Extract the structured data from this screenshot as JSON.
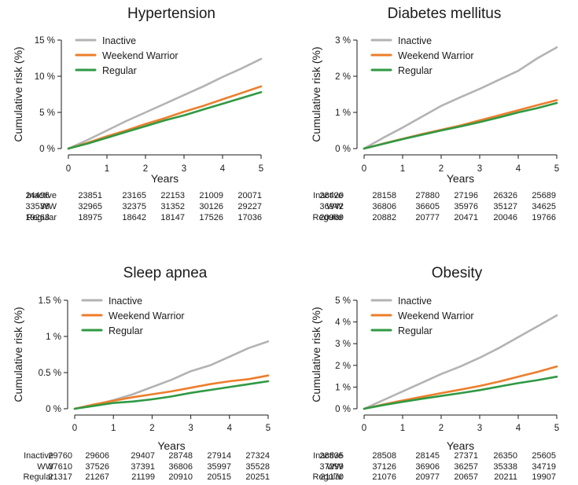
{
  "colors": {
    "Inactive": "#b3b3b3",
    "Weekend Warrior": "#ee7d2a",
    "Regular": "#2e9a42",
    "axis": "#1a1a1a"
  },
  "chart_data": [
    {
      "type": "line",
      "title": "Hypertension",
      "xlabel": "Years",
      "ylabel": "Cumulative risk (%)",
      "xlim": [
        0,
        5
      ],
      "ylim": [
        0,
        15
      ],
      "xticks": [
        "0",
        "1",
        "2",
        "3",
        "4",
        "5"
      ],
      "yticks": [
        0,
        5,
        10,
        15
      ],
      "ytick_labels": [
        "0 %",
        "5 %",
        "10 %",
        "15 %"
      ],
      "legend": [
        "Inactive",
        "Weekend Warrior",
        "Regular"
      ],
      "series": [
        {
          "name": "Inactive",
          "x": [
            0,
            0.5,
            1,
            1.5,
            2,
            2.5,
            3,
            3.5,
            4,
            4.5,
            5
          ],
          "y": [
            0,
            1.2,
            2.5,
            3.8,
            5.0,
            6.2,
            7.4,
            8.6,
            9.9,
            11.1,
            12.4
          ]
        },
        {
          "name": "Weekend Warrior",
          "x": [
            0,
            0.5,
            1,
            1.5,
            2,
            2.5,
            3,
            3.5,
            4,
            4.5,
            5
          ],
          "y": [
            0,
            0.8,
            1.7,
            2.5,
            3.4,
            4.2,
            5.1,
            5.9,
            6.8,
            7.7,
            8.6
          ]
        },
        {
          "name": "Regular",
          "x": [
            0,
            0.5,
            1,
            1.5,
            2,
            2.5,
            3,
            3.5,
            4,
            4.5,
            5
          ],
          "y": [
            0,
            0.7,
            1.5,
            2.3,
            3.1,
            3.9,
            4.6,
            5.4,
            6.2,
            7.0,
            7.8
          ]
        }
      ],
      "risk_table": {
        "rows": [
          {
            "label": "Inactive",
            "values": [
              "24496",
              "23851",
              "23165",
              "22153",
              "21009",
              "20071"
            ]
          },
          {
            "label": "WW",
            "values": [
              "33538",
              "32965",
              "32375",
              "31352",
              "30126",
              "29227"
            ]
          },
          {
            "label": "Regular",
            "values": [
              "19263",
              "18975",
              "18642",
              "18147",
              "17526",
              "17036"
            ]
          }
        ]
      }
    },
    {
      "type": "line",
      "title": "Diabetes mellitus",
      "xlabel": "Years",
      "ylabel": "Cumulative risk (%)",
      "xlim": [
        0,
        5
      ],
      "ylim": [
        0,
        3
      ],
      "xticks": [
        "0",
        "1",
        "2",
        "3",
        "4",
        "5"
      ],
      "yticks": [
        0,
        1,
        2,
        3
      ],
      "ytick_labels": [
        "0 %",
        "1 %",
        "2 %",
        "3 %"
      ],
      "legend": [
        "Inactive",
        "Weekend Warrior",
        "Regular"
      ],
      "series": [
        {
          "name": "Inactive",
          "x": [
            0,
            0.5,
            1,
            1.5,
            2,
            2.5,
            3,
            3.5,
            4,
            4.5,
            5
          ],
          "y": [
            0,
            0.3,
            0.58,
            0.88,
            1.18,
            1.42,
            1.65,
            1.9,
            2.15,
            2.5,
            2.8
          ]
        },
        {
          "name": "Weekend Warrior",
          "x": [
            0,
            0.5,
            1,
            1.5,
            2,
            2.5,
            3,
            3.5,
            4,
            4.5,
            5
          ],
          "y": [
            0,
            0.14,
            0.27,
            0.4,
            0.52,
            0.64,
            0.78,
            0.92,
            1.06,
            1.2,
            1.34
          ]
        },
        {
          "name": "Regular",
          "x": [
            0,
            0.5,
            1,
            1.5,
            2,
            2.5,
            3,
            3.5,
            4,
            4.5,
            5
          ],
          "y": [
            0,
            0.13,
            0.26,
            0.38,
            0.5,
            0.61,
            0.73,
            0.86,
            1.0,
            1.12,
            1.26
          ]
        }
      ],
      "risk_table": {
        "rows": [
          {
            "label": "Inactive",
            "values": [
              "28420",
              "28158",
              "27880",
              "27196",
              "26326",
              "25689"
            ]
          },
          {
            "label": "WW",
            "values": [
              "36942",
              "36806",
              "36605",
              "35976",
              "35127",
              "34625"
            ]
          },
          {
            "label": "Regular",
            "values": [
              "20969",
              "20882",
              "20777",
              "20471",
              "20046",
              "19766"
            ]
          }
        ]
      }
    },
    {
      "type": "line",
      "title": "Sleep apnea",
      "xlabel": "Years",
      "ylabel": "Cumulative risk (%)",
      "xlim": [
        0,
        5
      ],
      "ylim": [
        0,
        1.5
      ],
      "xticks": [
        "0",
        "1",
        "2",
        "3",
        "4",
        "5"
      ],
      "yticks": [
        0,
        0.5,
        1,
        1.5
      ],
      "ytick_labels": [
        "0 %",
        "0.5 %",
        "1 %",
        "1.5 %"
      ],
      "legend": [
        "Inactive",
        "Weekend Warrior",
        "Regular"
      ],
      "series": [
        {
          "name": "Inactive",
          "x": [
            0,
            0.5,
            1,
            1.5,
            2,
            2.5,
            3,
            3.5,
            4,
            4.5,
            5
          ],
          "y": [
            0,
            0.05,
            0.12,
            0.2,
            0.3,
            0.4,
            0.52,
            0.6,
            0.72,
            0.84,
            0.93
          ]
        },
        {
          "name": "Weekend Warrior",
          "x": [
            0,
            0.5,
            1,
            1.5,
            2,
            2.5,
            3,
            3.5,
            4,
            4.5,
            5
          ],
          "y": [
            0,
            0.06,
            0.11,
            0.16,
            0.2,
            0.24,
            0.29,
            0.34,
            0.38,
            0.41,
            0.46
          ]
        },
        {
          "name": "Regular",
          "x": [
            0,
            0.5,
            1,
            1.5,
            2,
            2.5,
            3,
            3.5,
            4,
            4.5,
            5
          ],
          "y": [
            0,
            0.04,
            0.08,
            0.1,
            0.13,
            0.17,
            0.22,
            0.26,
            0.3,
            0.34,
            0.38
          ]
        }
      ],
      "risk_table": {
        "rows": [
          {
            "label": "Inactive",
            "values": [
              "29760",
              "29606",
              "29407",
              "28748",
              "27914",
              "27324"
            ]
          },
          {
            "label": "WW",
            "values": [
              "37610",
              "37526",
              "37391",
              "36806",
              "35997",
              "35528"
            ]
          },
          {
            "label": "Regular",
            "values": [
              "21317",
              "21267",
              "21199",
              "20910",
              "20515",
              "20251"
            ]
          }
        ]
      }
    },
    {
      "type": "line",
      "title": "Obesity",
      "xlabel": "Years",
      "ylabel": "Cumulative risk (%)",
      "xlim": [
        0,
        5
      ],
      "ylim": [
        0,
        5
      ],
      "xticks": [
        "0",
        "1",
        "2",
        "3",
        "4",
        "5"
      ],
      "yticks": [
        0,
        1,
        2,
        3,
        4,
        5
      ],
      "ytick_labels": [
        "0 %",
        "1 %",
        "2 %",
        "3 %",
        "4 %",
        "5 %"
      ],
      "legend": [
        "Inactive",
        "Weekend Warrior",
        "Regular"
      ],
      "series": [
        {
          "name": "Inactive",
          "x": [
            0,
            0.5,
            1,
            1.5,
            2,
            2.5,
            3,
            3.5,
            4,
            4.5,
            5
          ],
          "y": [
            0,
            0.4,
            0.8,
            1.2,
            1.6,
            1.95,
            2.35,
            2.8,
            3.3,
            3.8,
            4.3
          ]
        },
        {
          "name": "Weekend Warrior",
          "x": [
            0,
            0.5,
            1,
            1.5,
            2,
            2.5,
            3,
            3.5,
            4,
            4.5,
            5
          ],
          "y": [
            0,
            0.2,
            0.38,
            0.55,
            0.72,
            0.88,
            1.05,
            1.25,
            1.48,
            1.7,
            1.95
          ]
        },
        {
          "name": "Regular",
          "x": [
            0,
            0.5,
            1,
            1.5,
            2,
            2.5,
            3,
            3.5,
            4,
            4.5,
            5
          ],
          "y": [
            0,
            0.17,
            0.32,
            0.46,
            0.59,
            0.72,
            0.86,
            1.02,
            1.18,
            1.32,
            1.48
          ]
        }
      ],
      "risk_table": {
        "rows": [
          {
            "label": "Inactive",
            "values": [
              "28835",
              "28508",
              "28145",
              "27371",
              "26350",
              "25605"
            ]
          },
          {
            "label": "WW",
            "values": [
              "37299",
              "37126",
              "36906",
              "36257",
              "35338",
              "34719"
            ]
          },
          {
            "label": "Regular",
            "values": [
              "21170",
              "21076",
              "20977",
              "20657",
              "20211",
              "19907"
            ]
          }
        ]
      }
    }
  ]
}
